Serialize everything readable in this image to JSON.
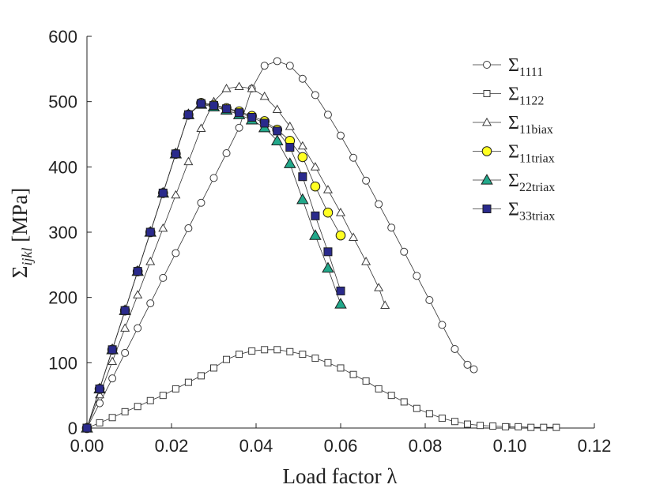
{
  "chart_data": {
    "type": "scatter",
    "title": "",
    "xlabel": "Load factor λ",
    "ylabel": "Σ_ijkl [MPa]",
    "ylabel_main": "Σ",
    "ylabel_sub": "ijkl",
    "ylabel_unit": " [MPa]",
    "xlim": [
      0,
      0.12
    ],
    "ylim": [
      0,
      600
    ],
    "xticks": [
      0,
      0.02,
      0.04,
      0.06,
      0.08,
      0.1,
      0.12
    ],
    "xtick_labels": [
      "0.00",
      "0.02",
      "0.04",
      "0.06",
      "0.08",
      "0.10",
      "0.12"
    ],
    "yticks": [
      0,
      100,
      200,
      300,
      400,
      500,
      600
    ],
    "ytick_labels": [
      "0",
      "100",
      "200",
      "300",
      "400",
      "500",
      "600"
    ],
    "grid": false,
    "legend_position": "top-right",
    "series": [
      {
        "name": "Σ1111",
        "label_main": "Σ",
        "label_sub": "1111",
        "marker": "circle",
        "fill": "#ffffff",
        "stroke": "#3a3a3a",
        "x": [
          0,
          0.003,
          0.006,
          0.009,
          0.012,
          0.015,
          0.018,
          0.021,
          0.024,
          0.027,
          0.03,
          0.033,
          0.036,
          0.039,
          0.042,
          0.045,
          0.048,
          0.051,
          0.054,
          0.057,
          0.06,
          0.063,
          0.066,
          0.069,
          0.072,
          0.075,
          0.078,
          0.081,
          0.084,
          0.087,
          0.09,
          0.0915
        ],
        "y": [
          0,
          38,
          76,
          115,
          153,
          191,
          230,
          268,
          306,
          345,
          383,
          421,
          460,
          520,
          555,
          562,
          555,
          535,
          510,
          480,
          448,
          414,
          379,
          343,
          307,
          270,
          233,
          196,
          158,
          121,
          97,
          90
        ]
      },
      {
        "name": "Σ1122",
        "label_main": "Σ",
        "label_sub": "1122",
        "marker": "square",
        "fill": "#ffffff",
        "stroke": "#3a3a3a",
        "x": [
          0,
          0.003,
          0.006,
          0.009,
          0.012,
          0.015,
          0.018,
          0.021,
          0.024,
          0.027,
          0.03,
          0.033,
          0.036,
          0.039,
          0.042,
          0.045,
          0.048,
          0.051,
          0.054,
          0.057,
          0.06,
          0.063,
          0.066,
          0.069,
          0.072,
          0.075,
          0.078,
          0.081,
          0.084,
          0.087,
          0.09,
          0.093,
          0.096,
          0.099,
          0.102,
          0.105,
          0.108,
          0.111
        ],
        "y": [
          0,
          8,
          16,
          25,
          33,
          42,
          50,
          60,
          70,
          80,
          92,
          105,
          113,
          118,
          120,
          120,
          117,
          113,
          107,
          100,
          92,
          82,
          72,
          60,
          50,
          40,
          30,
          22,
          15,
          10,
          6,
          4,
          3,
          2,
          2,
          1,
          1,
          1
        ]
      },
      {
        "name": "Σ11biax",
        "label_main": "Σ",
        "label_sub": "11biax",
        "marker": "triangle",
        "fill": "#ffffff",
        "stroke": "#3a3a3a",
        "x": [
          0,
          0.003,
          0.006,
          0.009,
          0.012,
          0.015,
          0.018,
          0.021,
          0.024,
          0.027,
          0.03,
          0.033,
          0.036,
          0.039,
          0.042,
          0.045,
          0.048,
          0.051,
          0.054,
          0.057,
          0.06,
          0.063,
          0.066,
          0.069,
          0.0705
        ],
        "y": [
          0,
          51,
          102,
          153,
          204,
          255,
          306,
          357,
          408,
          459,
          500,
          520,
          523,
          520,
          508,
          488,
          462,
          432,
          400,
          365,
          330,
          292,
          255,
          215,
          188
        ]
      },
      {
        "name": "Σ11triax",
        "label_main": "Σ",
        "label_sub": "11triax",
        "marker": "circle",
        "fill": "#ffff22",
        "stroke": "#1c1c1c",
        "x": [
          0,
          0.003,
          0.006,
          0.009,
          0.012,
          0.015,
          0.018,
          0.021,
          0.024,
          0.027,
          0.03,
          0.033,
          0.036,
          0.039,
          0.042,
          0.045,
          0.048,
          0.051,
          0.054,
          0.057,
          0.06
        ],
        "y": [
          0,
          60,
          120,
          180,
          240,
          300,
          360,
          420,
          480,
          498,
          495,
          490,
          485,
          478,
          470,
          457,
          440,
          415,
          370,
          330,
          295
        ]
      },
      {
        "name": "Σ22triax",
        "label_main": "Σ",
        "label_sub": "22triax",
        "marker": "triangle",
        "fill": "#22a88a",
        "stroke": "#1c1c1c",
        "x": [
          0,
          0.003,
          0.006,
          0.009,
          0.012,
          0.015,
          0.018,
          0.021,
          0.024,
          0.027,
          0.03,
          0.033,
          0.036,
          0.039,
          0.042,
          0.045,
          0.048,
          0.051,
          0.054,
          0.057,
          0.06
        ],
        "y": [
          0,
          60,
          120,
          180,
          240,
          300,
          360,
          420,
          480,
          496,
          492,
          487,
          480,
          472,
          460,
          440,
          405,
          350,
          295,
          245,
          190
        ]
      },
      {
        "name": "Σ33triax",
        "label_main": "Σ",
        "label_sub": "33triax",
        "marker": "square",
        "fill": "#2a2a8c",
        "stroke": "#1c1c1c",
        "x": [
          0,
          0.003,
          0.006,
          0.009,
          0.012,
          0.015,
          0.018,
          0.021,
          0.024,
          0.027,
          0.03,
          0.033,
          0.036,
          0.039,
          0.042,
          0.045,
          0.048,
          0.051,
          0.054,
          0.057,
          0.06
        ],
        "y": [
          0,
          60,
          120,
          180,
          240,
          300,
          360,
          420,
          480,
          497,
          494,
          489,
          483,
          476,
          467,
          455,
          430,
          385,
          325,
          270,
          210
        ]
      }
    ]
  }
}
